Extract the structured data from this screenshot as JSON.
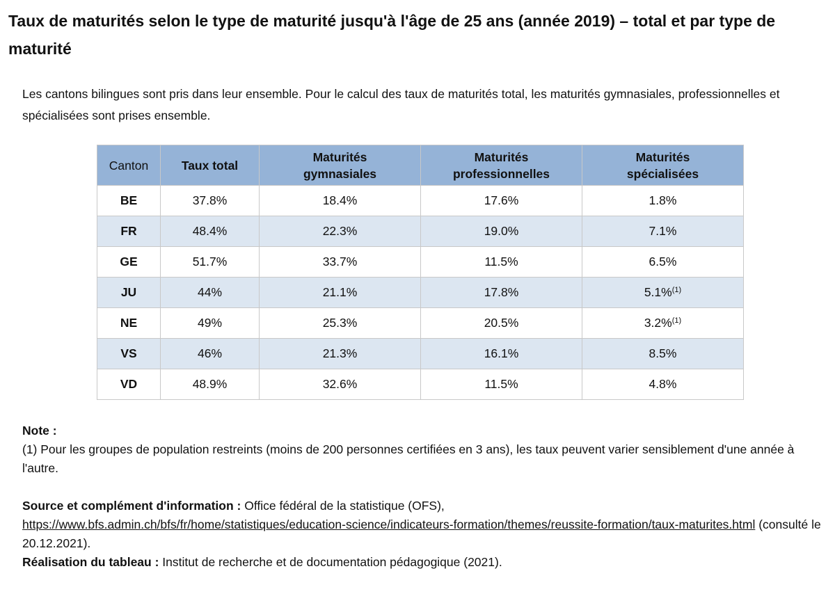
{
  "title": "Taux de maturités selon le type de maturité jusqu'à l'âge de 25 ans (année 2019) – total et par type de maturité",
  "intro": "Les cantons bilingues sont pris dans leur ensemble. Pour le calcul des taux de maturités total, les maturités gymnasiales, professionnelles et spécialisées sont prises ensemble.",
  "table": {
    "headers": {
      "canton": "Canton",
      "total": "Taux total",
      "gym_1": "Maturités",
      "gym_2": "gymnasiales",
      "pro_1": "Maturités",
      "pro_2": "professionnelles",
      "spec_1": "Maturités",
      "spec_2": "spécialisées"
    },
    "rows": [
      {
        "canton": "BE",
        "total": "37.8%",
        "gym": "18.4%",
        "pro": "17.6%",
        "spec": "1.8%",
        "spec_note": ""
      },
      {
        "canton": "FR",
        "total": "48.4%",
        "gym": "22.3%",
        "pro": "19.0%",
        "spec": "7.1%",
        "spec_note": ""
      },
      {
        "canton": "GE",
        "total": "51.7%",
        "gym": "33.7%",
        "pro": "11.5%",
        "spec": "6.5%",
        "spec_note": ""
      },
      {
        "canton": "JU",
        "total": "44%",
        "gym": "21.1%",
        "pro": "17.8%",
        "spec": "5.1%",
        "spec_note": "(1)"
      },
      {
        "canton": "NE",
        "total": "49%",
        "gym": "25.3%",
        "pro": "20.5%",
        "spec": "3.2%",
        "spec_note": "(1)"
      },
      {
        "canton": "VS",
        "total": "46%",
        "gym": "21.3%",
        "pro": "16.1%",
        "spec": "8.5%",
        "spec_note": ""
      },
      {
        "canton": "VD",
        "total": "48.9%",
        "gym": "32.6%",
        "pro": "11.5%",
        "spec": "4.8%",
        "spec_note": ""
      }
    ]
  },
  "note": {
    "label": "Note :",
    "text": "(1) Pour les groupes de population restreints (moins de 200 personnes certifiées en 3 ans), les taux peuvent varier sensiblement d'une année à l'autre."
  },
  "source": {
    "label": "Source et complément d'information :",
    "text": " Office fédéral de la statistique (OFS),",
    "url": "https://www.bfs.admin.ch/bfs/fr/home/statistiques/education-science/indicateurs-formation/themes/reussite-formation/taux-maturites.html",
    "consulted": " (consulté le 20.12.2021)."
  },
  "realisation": {
    "label": "Réalisation du tableau :",
    "text": " Institut de recherche et de documentation pédagogique (2021)."
  }
}
